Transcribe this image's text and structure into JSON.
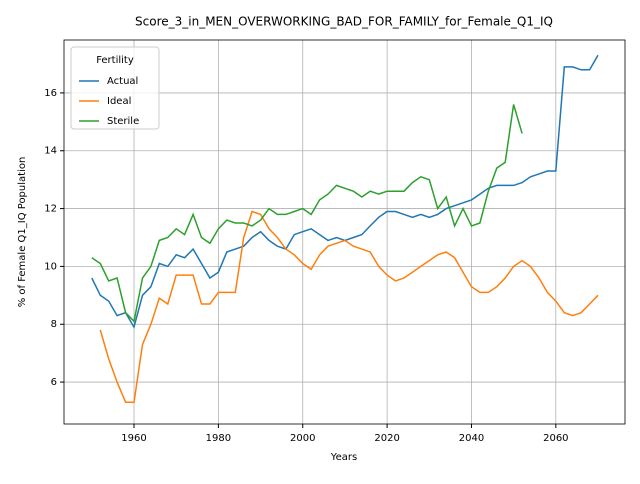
{
  "chart_data": {
    "type": "line",
    "title": "Score_3_in_MEN_OVERWORKING_BAD_FOR_FAMILY_for_Female_Q1_IQ",
    "xlabel": "Years",
    "ylabel": "% of Female Q1_IQ Population",
    "legend_title": "Fertility",
    "legend": "upper left",
    "grid": true,
    "x": [
      1950,
      1952,
      1954,
      1956,
      1958,
      1960,
      1962,
      1964,
      1966,
      1968,
      1970,
      1972,
      1974,
      1976,
      1978,
      1980,
      1982,
      1984,
      1986,
      1988,
      1990,
      1992,
      1994,
      1996,
      1998,
      2000,
      2002,
      2004,
      2006,
      2008,
      2010,
      2012,
      2014,
      2016,
      2018,
      2020,
      2022,
      2024,
      2026,
      2028,
      2030,
      2032,
      2034,
      2036,
      2038,
      2040,
      2042,
      2044,
      2046,
      2048,
      2050,
      2052,
      2054,
      2056,
      2058,
      2060,
      2062,
      2064,
      2066,
      2068,
      2070
    ],
    "series": [
      {
        "name": "Actual",
        "color": "#1f77b4",
        "values": [
          9.6,
          9.0,
          8.8,
          8.3,
          8.4,
          7.9,
          9.0,
          9.3,
          10.1,
          10.0,
          10.4,
          10.3,
          10.6,
          10.1,
          9.6,
          9.8,
          10.5,
          10.6,
          10.7,
          11.0,
          11.2,
          10.9,
          10.7,
          10.6,
          11.1,
          11.2,
          11.3,
          11.1,
          10.9,
          11.0,
          10.9,
          11.0,
          11.1,
          11.4,
          11.7,
          11.9,
          11.9,
          11.8,
          11.7,
          11.8,
          11.7,
          11.8,
          12.0,
          12.1,
          12.2,
          12.3,
          12.5,
          12.7,
          12.8,
          12.8,
          12.8,
          12.9,
          13.1,
          13.2,
          13.3,
          13.3,
          16.9,
          16.9,
          16.8,
          16.8,
          17.3
        ]
      },
      {
        "name": "Ideal",
        "color": "#ff7f0e",
        "values": [
          null,
          7.8,
          6.8,
          6.0,
          5.3,
          5.3,
          7.3,
          8.0,
          8.9,
          8.7,
          9.7,
          9.7,
          9.7,
          8.7,
          8.7,
          9.1,
          9.1,
          9.1,
          11.0,
          11.9,
          11.8,
          11.3,
          11.0,
          10.6,
          10.4,
          10.1,
          9.9,
          10.4,
          10.7,
          10.8,
          10.9,
          10.7,
          10.6,
          10.5,
          10.0,
          9.7,
          9.5,
          9.6,
          9.8,
          10.0,
          10.2,
          10.4,
          10.5,
          10.3,
          9.8,
          9.3,
          9.1,
          9.1,
          9.3,
          9.6,
          10.0,
          10.2,
          10.0,
          9.6,
          9.1,
          8.8,
          8.4,
          8.3,
          8.4,
          8.7,
          9.0
        ]
      },
      {
        "name": "Sterile",
        "color": "#2ca02c",
        "values": [
          10.3,
          10.1,
          9.5,
          9.6,
          8.4,
          8.1,
          9.6,
          10.0,
          10.9,
          11.0,
          11.3,
          11.1,
          11.8,
          11.0,
          10.8,
          11.3,
          11.6,
          11.5,
          11.5,
          11.4,
          11.6,
          12.0,
          11.8,
          11.8,
          11.9,
          12.0,
          11.8,
          12.3,
          12.5,
          12.8,
          12.7,
          12.6,
          12.4,
          12.6,
          12.5,
          12.6,
          12.6,
          12.6,
          12.9,
          13.1,
          13.0,
          12.0,
          12.4,
          11.4,
          12.0,
          11.4,
          11.5,
          12.6,
          13.4,
          13.6,
          15.6,
          14.6,
          null,
          null,
          null,
          null,
          null,
          null,
          null,
          null,
          null
        ]
      }
    ],
    "xlim": [
      1943.4,
      2076.4
    ],
    "xticks": [
      1960,
      1980,
      2000,
      2020,
      2040,
      2060
    ],
    "ylim": [
      4.55,
      17.83
    ],
    "yticks": [
      6,
      8,
      10,
      12,
      14,
      16
    ]
  }
}
